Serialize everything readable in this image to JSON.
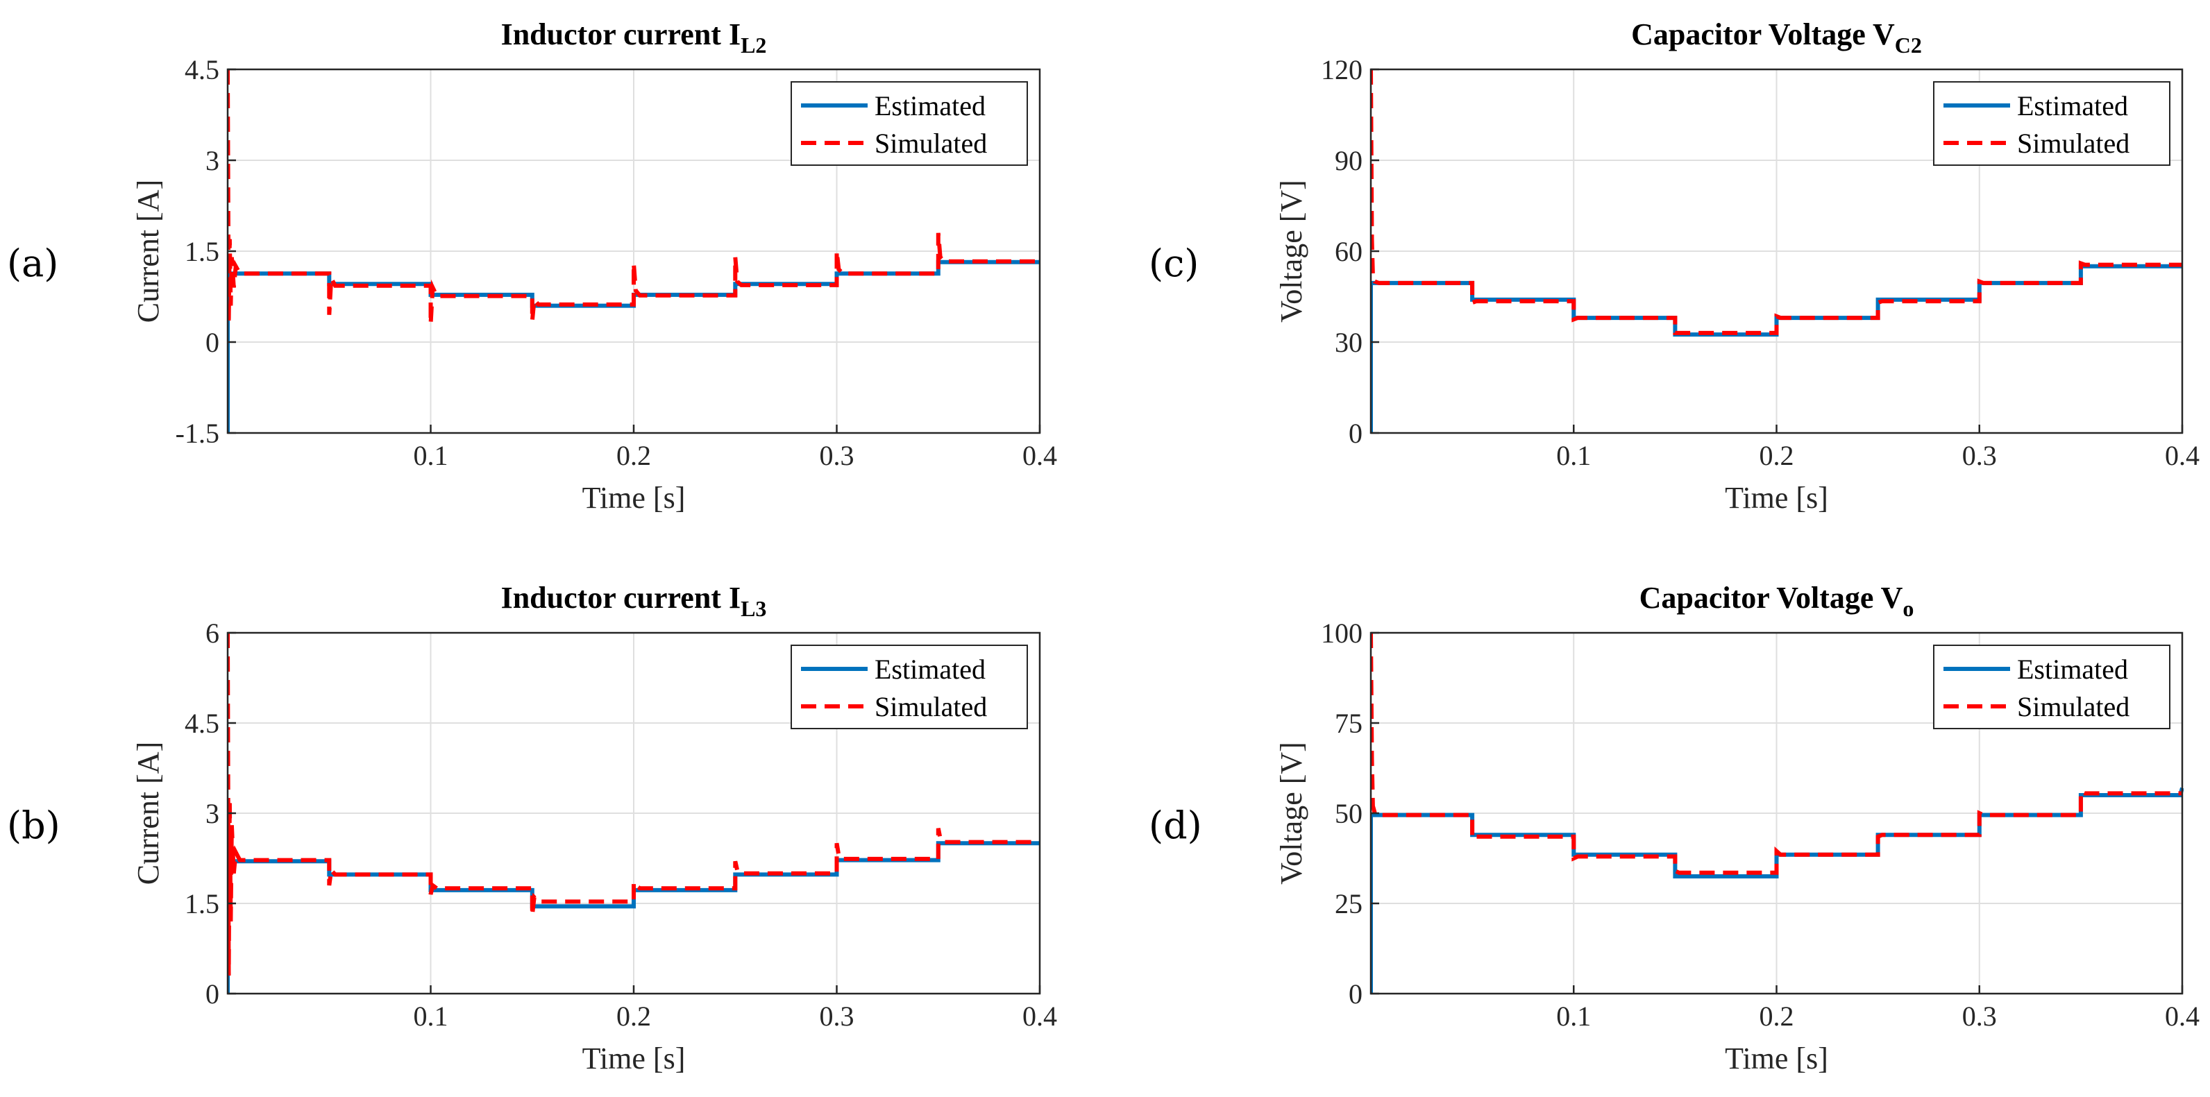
{
  "panel_letters": [
    "(a)",
    "(b)",
    "(c)",
    "(d)"
  ],
  "legend": {
    "estimated": "Estimated",
    "simulated": "Simulated"
  },
  "colors": {
    "estimated": "#0072BD",
    "simulated": "#FF0000"
  },
  "chart_data": [
    {
      "panel": "(a)",
      "type": "line",
      "title": "Inductor current I",
      "title_sub": "L2",
      "xlabel": "Time [s]",
      "ylabel": "Current [A]",
      "xlim": [
        0,
        0.4
      ],
      "ylim": [
        -1.5,
        4.5
      ],
      "xticks": [
        0.1,
        0.2,
        0.3,
        0.4
      ],
      "xtick_labels": [
        "0.1",
        "0.2",
        "0.3",
        "0.4"
      ],
      "yticks": [
        -1.5,
        0,
        1.5,
        3,
        4.5
      ],
      "ytick_labels": [
        "-1.5",
        "0",
        "1.5",
        "3",
        "4.5"
      ],
      "grid": true,
      "legend_position": "top-right",
      "series": [
        {
          "name": "Estimated",
          "style": "solid",
          "x": [
            0.0,
            0.0,
            0.002,
            0.002,
            0.05,
            0.05,
            0.1,
            0.1,
            0.15,
            0.15,
            0.2,
            0.2,
            0.25,
            0.25,
            0.3,
            0.3,
            0.35,
            0.35,
            0.4
          ],
          "y": [
            -1.5,
            1.13,
            1.13,
            1.13,
            1.13,
            0.96,
            0.96,
            0.78,
            0.78,
            0.6,
            0.6,
            0.78,
            0.78,
            0.96,
            0.96,
            1.13,
            1.13,
            1.32,
            1.32
          ]
        },
        {
          "name": "Simulated",
          "style": "dashed",
          "x": [
            0.0,
            0.0005,
            0.001,
            0.0015,
            0.002,
            0.003,
            0.004,
            0.006,
            0.05,
            0.05,
            0.051,
            0.053,
            0.1,
            0.1,
            0.101,
            0.103,
            0.15,
            0.15,
            0.151,
            0.153,
            0.2,
            0.2,
            0.201,
            0.203,
            0.25,
            0.25,
            0.251,
            0.253,
            0.3,
            0.3,
            0.301,
            0.303,
            0.35,
            0.35,
            0.351,
            0.353,
            0.4
          ],
          "y": [
            4.5,
            0.3,
            1.7,
            0.6,
            1.4,
            0.9,
            1.25,
            1.13,
            1.13,
            0.45,
            1.05,
            0.93,
            0.93,
            0.3,
            0.9,
            0.76,
            0.76,
            0.35,
            0.7,
            0.62,
            0.62,
            1.3,
            0.85,
            0.77,
            0.77,
            1.4,
            1.0,
            0.94,
            0.94,
            1.5,
            1.2,
            1.13,
            1.13,
            1.8,
            1.4,
            1.33,
            1.33
          ]
        }
      ]
    },
    {
      "panel": "(b)",
      "type": "line",
      "title": "Inductor current I",
      "title_sub": "L3",
      "xlabel": "Time [s]",
      "ylabel": "Current [A]",
      "xlim": [
        0,
        0.4
      ],
      "ylim": [
        0,
        6
      ],
      "xticks": [
        0.1,
        0.2,
        0.3,
        0.4
      ],
      "xtick_labels": [
        "0.1",
        "0.2",
        "0.3",
        "0.4"
      ],
      "yticks": [
        0,
        1.5,
        3,
        4.5,
        6
      ],
      "ytick_labels": [
        "0",
        "1.5",
        "3",
        "4.5",
        "6"
      ],
      "grid": true,
      "legend_position": "top-right",
      "series": [
        {
          "name": "Estimated",
          "style": "solid",
          "x": [
            0.0,
            0.0,
            0.002,
            0.05,
            0.05,
            0.1,
            0.1,
            0.15,
            0.15,
            0.2,
            0.2,
            0.25,
            0.25,
            0.3,
            0.3,
            0.35,
            0.35,
            0.4
          ],
          "y": [
            0.0,
            2.2,
            2.2,
            2.2,
            1.98,
            1.98,
            1.72,
            1.72,
            1.45,
            1.45,
            1.72,
            1.72,
            1.98,
            1.98,
            2.22,
            2.22,
            2.5,
            2.5
          ]
        },
        {
          "name": "Simulated",
          "style": "dashed",
          "x": [
            0.0,
            0.0005,
            0.001,
            0.0015,
            0.002,
            0.003,
            0.004,
            0.006,
            0.05,
            0.05,
            0.051,
            0.053,
            0.1,
            0.1,
            0.101,
            0.103,
            0.15,
            0.15,
            0.151,
            0.153,
            0.2,
            0.2,
            0.201,
            0.203,
            0.25,
            0.25,
            0.251,
            0.253,
            0.3,
            0.3,
            0.301,
            0.303,
            0.35,
            0.35,
            0.351,
            0.353,
            0.4
          ],
          "y": [
            6.0,
            0.3,
            3.2,
            1.2,
            2.8,
            2.0,
            2.35,
            2.22,
            2.22,
            1.8,
            2.05,
            1.98,
            1.98,
            1.65,
            1.8,
            1.75,
            1.75,
            1.3,
            1.6,
            1.53,
            1.53,
            1.85,
            1.8,
            1.75,
            1.75,
            2.2,
            2.05,
            2.0,
            2.0,
            2.5,
            2.3,
            2.24,
            2.24,
            2.75,
            2.58,
            2.52,
            2.52
          ]
        }
      ]
    },
    {
      "panel": "(c)",
      "type": "line",
      "title": "Capacitor Voltage V",
      "title_sub": "C2",
      "xlabel": "Time [s]",
      "ylabel": "Voltage [V]",
      "xlim": [
        0,
        0.4
      ],
      "ylim": [
        0,
        120
      ],
      "xticks": [
        0.1,
        0.2,
        0.3,
        0.4
      ],
      "xtick_labels": [
        "0.1",
        "0.2",
        "0.3",
        "0.4"
      ],
      "yticks": [
        0,
        30,
        60,
        90,
        120
      ],
      "ytick_labels": [
        "0",
        "30",
        "60",
        "90",
        "120"
      ],
      "grid": true,
      "legend_position": "top-right",
      "series": [
        {
          "name": "Estimated",
          "style": "solid",
          "x": [
            0.0,
            0.0,
            0.002,
            0.05,
            0.05,
            0.1,
            0.1,
            0.15,
            0.15,
            0.2,
            0.2,
            0.25,
            0.25,
            0.3,
            0.3,
            0.35,
            0.35,
            0.4
          ],
          "y": [
            0.0,
            49.5,
            49.5,
            49.5,
            44,
            44,
            38,
            38,
            32.5,
            32.5,
            38,
            38,
            44,
            44,
            49.5,
            49.5,
            55,
            55
          ]
        },
        {
          "name": "Simulated",
          "style": "dashed",
          "x": [
            0.0,
            0.0005,
            0.001,
            0.002,
            0.004,
            0.05,
            0.05,
            0.052,
            0.1,
            0.1,
            0.102,
            0.15,
            0.15,
            0.152,
            0.2,
            0.2,
            0.202,
            0.25,
            0.25,
            0.252,
            0.3,
            0.3,
            0.302,
            0.35,
            0.35,
            0.352,
            0.4
          ],
          "y": [
            120,
            64,
            52,
            50,
            49.5,
            49.5,
            43,
            43.5,
            43.5,
            37.5,
            38,
            38,
            33,
            33,
            33,
            38.5,
            38,
            38,
            43,
            43.5,
            43.5,
            50,
            49.5,
            49.5,
            56,
            55.5,
            55.5
          ]
        }
      ]
    },
    {
      "panel": "(d)",
      "type": "line",
      "title": "Capacitor Voltage V",
      "title_sub": "o",
      "xlabel": "Time [s]",
      "ylabel": "Voltage [V]",
      "xlim": [
        0,
        0.4
      ],
      "ylim": [
        0,
        100
      ],
      "xticks": [
        0.1,
        0.2,
        0.3,
        0.4
      ],
      "xtick_labels": [
        "0.1",
        "0.2",
        "0.3",
        "0.4"
      ],
      "yticks": [
        0,
        25,
        50,
        75,
        100
      ],
      "ytick_labels": [
        "0",
        "25",
        "50",
        "75",
        "100"
      ],
      "grid": true,
      "legend_position": "top-right",
      "series": [
        {
          "name": "Estimated",
          "style": "solid",
          "x": [
            0.0,
            0.0,
            0.002,
            0.05,
            0.05,
            0.1,
            0.1,
            0.15,
            0.15,
            0.2,
            0.2,
            0.25,
            0.25,
            0.3,
            0.3,
            0.35,
            0.35,
            0.399,
            0.4
          ],
          "y": [
            0.0,
            49.5,
            49.5,
            49.5,
            44,
            44,
            38.5,
            38.5,
            32.5,
            32.5,
            38.5,
            38.5,
            44,
            44,
            49.5,
            49.5,
            55,
            55,
            57
          ]
        },
        {
          "name": "Simulated",
          "style": "dashed",
          "x": [
            0.0,
            0.0005,
            0.001,
            0.002,
            0.004,
            0.05,
            0.05,
            0.052,
            0.1,
            0.1,
            0.102,
            0.15,
            0.15,
            0.152,
            0.2,
            0.2,
            0.202,
            0.25,
            0.25,
            0.252,
            0.3,
            0.3,
            0.302,
            0.35,
            0.35,
            0.352,
            0.4
          ],
          "y": [
            100,
            65,
            52,
            50,
            49.5,
            49.5,
            43,
            43.5,
            43.5,
            37.5,
            38,
            38,
            34,
            33.5,
            33.5,
            39.5,
            38.5,
            38.5,
            43.5,
            44,
            44,
            50,
            49.5,
            49.5,
            56,
            55.5,
            55.5
          ]
        }
      ]
    }
  ]
}
